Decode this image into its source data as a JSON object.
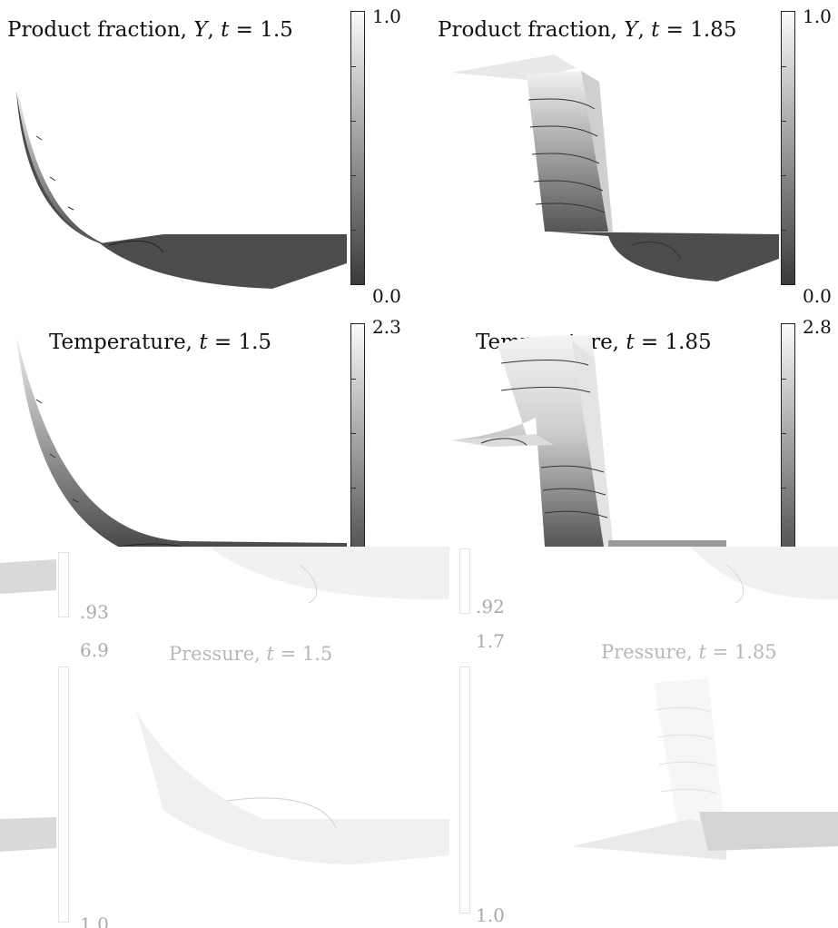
{
  "panels": {
    "product_15": {
      "title_pre": "Product fraction, ",
      "var": "Y",
      "title_post": ", ",
      "tvar": "t",
      "eq": " = 1.5",
      "cbar_max": "1.0",
      "cbar_min": "0.0"
    },
    "product_185": {
      "title_pre": "Product fraction, ",
      "var": "Y",
      "title_post": ", ",
      "tvar": "t",
      "eq": " = 1.85",
      "cbar_max": "1.0",
      "cbar_min": "0.0"
    },
    "temp_15": {
      "title_pre": "Temperature, ",
      "tvar": "t",
      "eq": " = 1.5",
      "cbar_max": "2.3"
    },
    "temp_185": {
      "title_pre": "Temperature, ",
      "tvar": "t",
      "eq": " = 1.85",
      "cbar_max": "2.8"
    },
    "pressure_15": {
      "title_pre": "Pressure, ",
      "tvar": "t",
      "eq": " = 1.5",
      "top_label": ".93",
      "cbar_max": "6.9",
      "cbar_min": "1.0"
    },
    "pressure_185": {
      "title_pre": "Pressure, ",
      "tvar": "t",
      "eq": " = 1.85",
      "top_label": ".92",
      "cbar_max": "1.7",
      "cbar_min": "1.0"
    }
  },
  "colors": {
    "surface_dark": "#4a4a4a",
    "surface_light": "#e6e6e6",
    "faded": "#bdbdbd"
  }
}
